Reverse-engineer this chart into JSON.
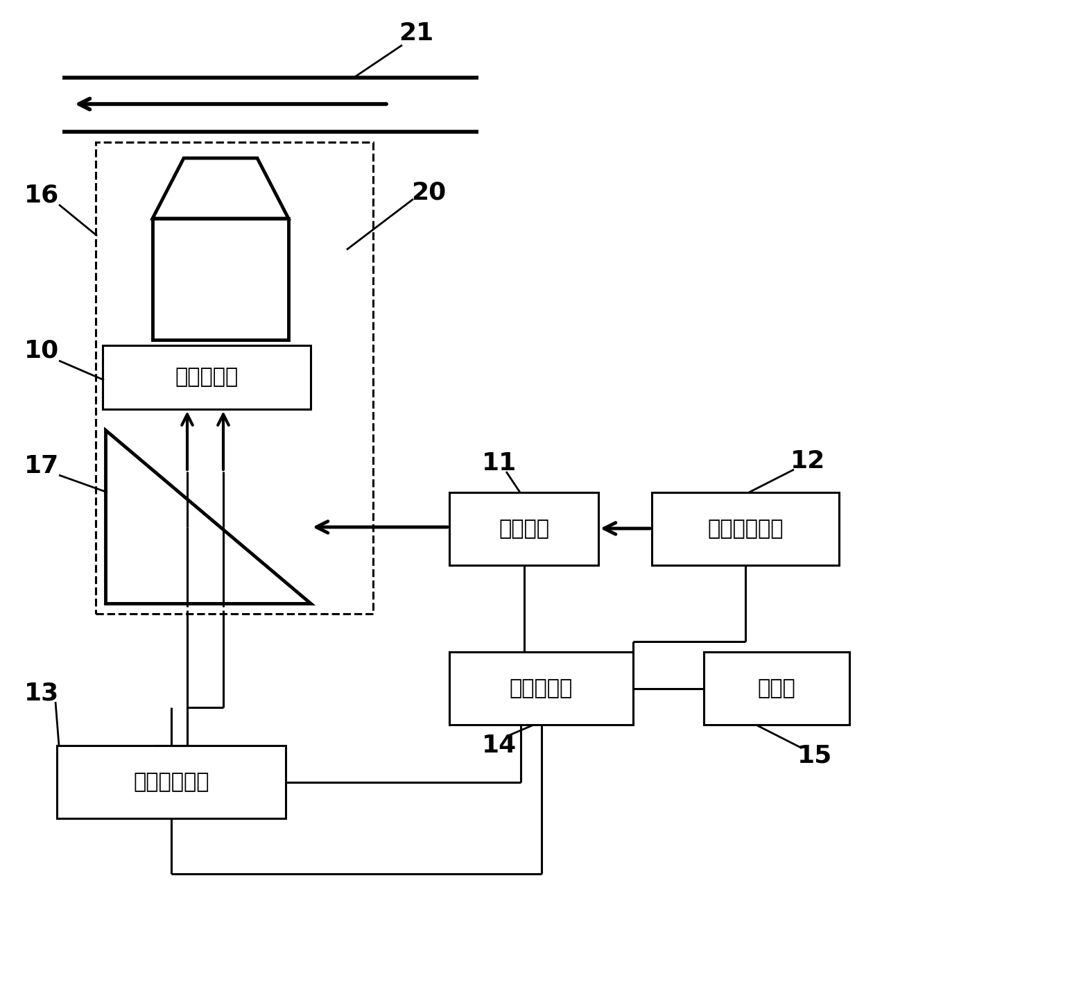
{
  "bg_color": "#ffffff",
  "line_color": "#000000",
  "labels": {
    "pos_controller": "位移控制器",
    "optical_system": "光学系统",
    "dual_laser": "双脉冲激光器",
    "sync_controller": "同步控制器",
    "photon_detector": "光量子检测器",
    "processor": "处理器"
  },
  "numbers": {
    "n10": "10",
    "n11": "11",
    "n12": "12",
    "n13": "13",
    "n14": "14",
    "n15": "15",
    "n16": "16",
    "n17": "17",
    "n20": "20",
    "n21": "21"
  },
  "font_size_label": 22,
  "font_size_number": 24
}
